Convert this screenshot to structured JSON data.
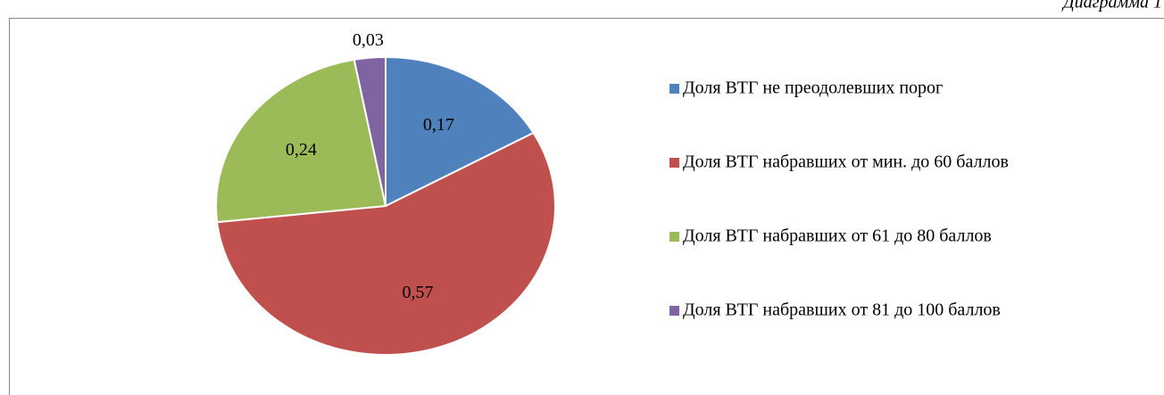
{
  "chart_data": {
    "type": "pie",
    "annotation": "Диаграмма 1",
    "categories": [
      "Доля ВТГ не преодолевших порог",
      "Доля ВТГ набравших от мин. до 60 баллов",
      "Доля ВТГ набравших от 61 до 80 баллов",
      "Доля ВТГ набравших от 81 до 100 баллов"
    ],
    "values": [
      0.17,
      0.57,
      0.24,
      0.03
    ],
    "value_labels": [
      "0,17",
      "0,57",
      "0,24",
      "0,03"
    ],
    "colors": [
      "#4f81bd",
      "#c0504d",
      "#9bbb59",
      "#8064a2"
    ],
    "legend": "right"
  }
}
